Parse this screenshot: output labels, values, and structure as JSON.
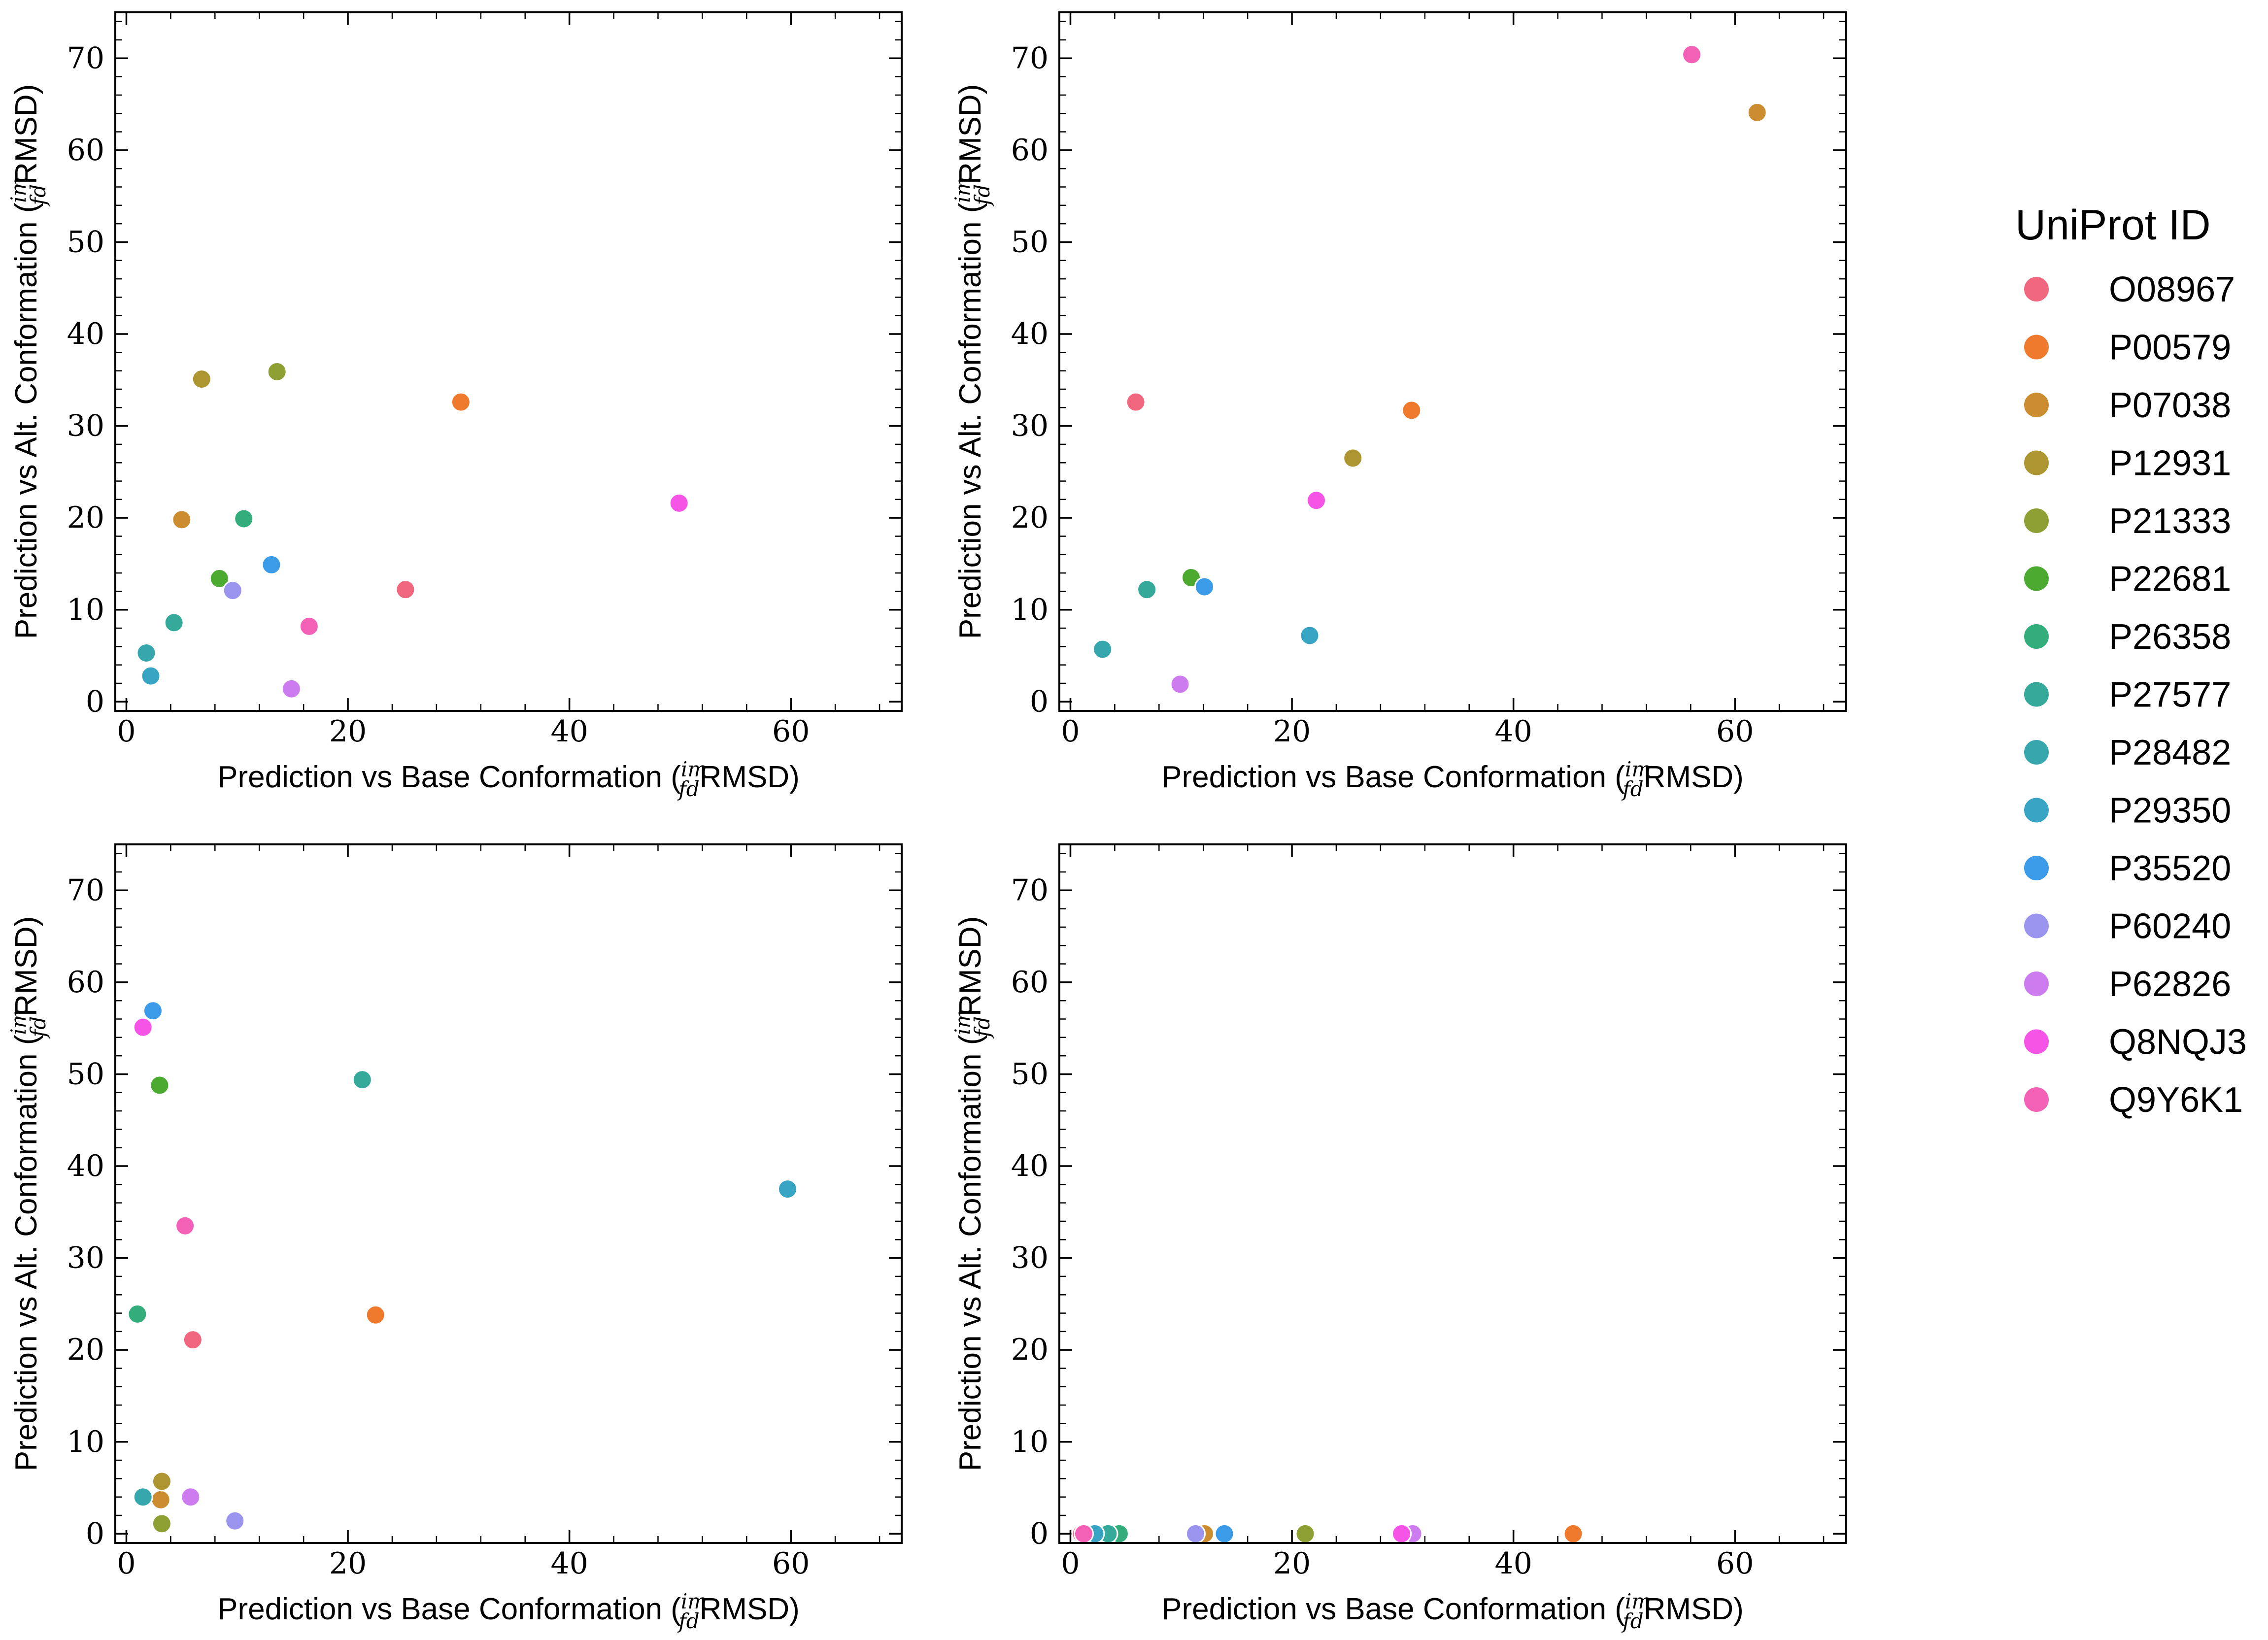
{
  "legend": {
    "title": "UniProt ID",
    "entries": [
      {
        "id": "O08967",
        "color": "#f0677f"
      },
      {
        "id": "P00579",
        "color": "#ef7a2e"
      },
      {
        "id": "P07038",
        "color": "#cc8c30"
      },
      {
        "id": "P12931",
        "color": "#ad9632"
      },
      {
        "id": "P21333",
        "color": "#8e9f33"
      },
      {
        "id": "P22681",
        "color": "#4daa31"
      },
      {
        "id": "P26358",
        "color": "#33ad7c"
      },
      {
        "id": "P27577",
        "color": "#35aa9a"
      },
      {
        "id": "P28482",
        "color": "#37a7ae"
      },
      {
        "id": "P29350",
        "color": "#38a4c4"
      },
      {
        "id": "P35520",
        "color": "#3b9be8"
      },
      {
        "id": "P60240",
        "color": "#9a94ee"
      },
      {
        "id": "P62826",
        "color": "#cc7cef"
      },
      {
        "id": "Q8NQJ3",
        "color": "#f554e6"
      },
      {
        "id": "Q9Y6K1",
        "color": "#f261b6"
      }
    ]
  },
  "chart_data": [
    {
      "type": "scatter",
      "xlabel": "Prediction vs Base Conformation ($^{im}_{fd}$RMSD)",
      "ylabel": "Prediction vs Alt. Conformation ($^{im}_{fd}$RMSD)",
      "xlim": [
        -1,
        70
      ],
      "ylim": [
        -1,
        75
      ],
      "xticks": [
        0,
        20,
        40,
        60
      ],
      "yticks": [
        0,
        10,
        20,
        30,
        40,
        50,
        60,
        70
      ],
      "points": [
        {
          "series": "O08967",
          "x": 25.2,
          "y": 12.2
        },
        {
          "series": "P00579",
          "x": 30.2,
          "y": 32.6
        },
        {
          "series": "P07038",
          "x": 5.0,
          "y": 19.8
        },
        {
          "series": "P12931",
          "x": 6.8,
          "y": 35.1
        },
        {
          "series": "P21333",
          "x": 13.6,
          "y": 35.9
        },
        {
          "series": "P22681",
          "x": 8.4,
          "y": 13.4
        },
        {
          "series": "P26358",
          "x": 10.6,
          "y": 19.9
        },
        {
          "series": "P27577",
          "x": 4.3,
          "y": 8.6
        },
        {
          "series": "P28482",
          "x": 1.8,
          "y": 5.3
        },
        {
          "series": "P29350",
          "x": 2.2,
          "y": 2.8
        },
        {
          "series": "P35520",
          "x": 13.1,
          "y": 14.9
        },
        {
          "series": "P60240",
          "x": 9.6,
          "y": 12.1
        },
        {
          "series": "P62826",
          "x": 14.9,
          "y": 1.4
        },
        {
          "series": "Q8NQJ3",
          "x": 49.9,
          "y": 21.6
        },
        {
          "series": "Q9Y6K1",
          "x": 16.5,
          "y": 8.2
        }
      ]
    },
    {
      "type": "scatter",
      "xlabel": "Prediction vs Base Conformation ($^{im}_{fd}$RMSD)",
      "ylabel": "Prediction vs Alt. Conformation ($^{im}_{fd}$RMSD)",
      "xlim": [
        -1,
        70
      ],
      "ylim": [
        -1,
        75
      ],
      "xticks": [
        0,
        20,
        40,
        60
      ],
      "yticks": [
        0,
        10,
        20,
        30,
        40,
        50,
        60,
        70
      ],
      "points": [
        {
          "series": "O08967",
          "x": 5.9,
          "y": 32.6
        },
        {
          "series": "P00579",
          "x": 30.8,
          "y": 31.7
        },
        {
          "series": "P07038",
          "x": 62.0,
          "y": 64.1
        },
        {
          "series": "P12931",
          "x": 25.5,
          "y": 26.5
        },
        {
          "series": "P22681",
          "x": 10.9,
          "y": 13.5
        },
        {
          "series": "P27577",
          "x": 6.9,
          "y": 12.2
        },
        {
          "series": "P28482",
          "x": 2.9,
          "y": 5.7
        },
        {
          "series": "P29350",
          "x": 21.6,
          "y": 7.2
        },
        {
          "series": "P35520",
          "x": 12.1,
          "y": 12.5
        },
        {
          "series": "P62826",
          "x": 9.9,
          "y": 1.9
        },
        {
          "series": "Q8NQJ3",
          "x": 22.2,
          "y": 21.9
        },
        {
          "series": "Q9Y6K1",
          "x": 56.1,
          "y": 70.4
        }
      ]
    },
    {
      "type": "scatter",
      "xlabel": "Prediction vs Base Conformation ($^{im}_{fd}$RMSD)",
      "ylabel": "Prediction vs Alt. Conformation ($^{im}_{fd}$RMSD)",
      "xlim": [
        -1,
        70
      ],
      "ylim": [
        -1,
        75
      ],
      "xticks": [
        0,
        20,
        40,
        60
      ],
      "yticks": [
        0,
        10,
        20,
        30,
        40,
        50,
        60,
        70
      ],
      "points": [
        {
          "series": "O08967",
          "x": 6.0,
          "y": 21.1
        },
        {
          "series": "P00579",
          "x": 22.5,
          "y": 23.8
        },
        {
          "series": "P07038",
          "x": 3.1,
          "y": 3.7
        },
        {
          "series": "P12931",
          "x": 3.2,
          "y": 5.7
        },
        {
          "series": "P21333",
          "x": 3.2,
          "y": 1.1
        },
        {
          "series": "P22681",
          "x": 3.0,
          "y": 48.8
        },
        {
          "series": "P26358",
          "x": 1.0,
          "y": 23.9
        },
        {
          "series": "P27577",
          "x": 21.3,
          "y": 49.4
        },
        {
          "series": "P28482",
          "x": 1.5,
          "y": 4.0
        },
        {
          "series": "P29350",
          "x": 59.7,
          "y": 37.5
        },
        {
          "series": "P35520",
          "x": 2.4,
          "y": 56.9
        },
        {
          "series": "P60240",
          "x": 9.8,
          "y": 1.4
        },
        {
          "series": "P62826",
          "x": 5.8,
          "y": 4.0
        },
        {
          "series": "Q8NQJ3",
          "x": 1.5,
          "y": 55.1
        },
        {
          "series": "Q9Y6K1",
          "x": 5.3,
          "y": 33.5
        }
      ]
    },
    {
      "type": "scatter",
      "xlabel": "Prediction vs Base Conformation ($^{im}_{fd}$RMSD)",
      "ylabel": "Prediction vs Alt. Conformation ($^{im}_{fd}$RMSD)",
      "xlim": [
        -1,
        70
      ],
      "ylim": [
        -1,
        75
      ],
      "xticks": [
        0,
        20,
        40,
        60
      ],
      "yticks": [
        0,
        10,
        20,
        30,
        40,
        50,
        60,
        70
      ],
      "points": [
        {
          "series": "O08967",
          "x": 1.0,
          "y": 0
        },
        {
          "series": "P00579",
          "x": 45.4,
          "y": 0
        },
        {
          "series": "P07038",
          "x": 12.1,
          "y": 0
        },
        {
          "series": "P12931",
          "x": 29.9,
          "y": 0
        },
        {
          "series": "P21333",
          "x": 21.2,
          "y": 0
        },
        {
          "series": "P22681",
          "x": 3.6,
          "y": 0
        },
        {
          "series": "P26358",
          "x": 4.4,
          "y": 0
        },
        {
          "series": "P27577",
          "x": 3.4,
          "y": 0
        },
        {
          "series": "P28482",
          "x": 1.6,
          "y": 0
        },
        {
          "series": "P29350",
          "x": 2.2,
          "y": 0
        },
        {
          "series": "P35520",
          "x": 13.9,
          "y": 0
        },
        {
          "series": "P60240",
          "x": 11.3,
          "y": 0
        },
        {
          "series": "P62826",
          "x": 30.9,
          "y": 0
        },
        {
          "series": "Q8NQJ3",
          "x": 29.9,
          "y": 0
        },
        {
          "series": "Q9Y6K1",
          "x": 1.2,
          "y": 0
        }
      ]
    }
  ]
}
